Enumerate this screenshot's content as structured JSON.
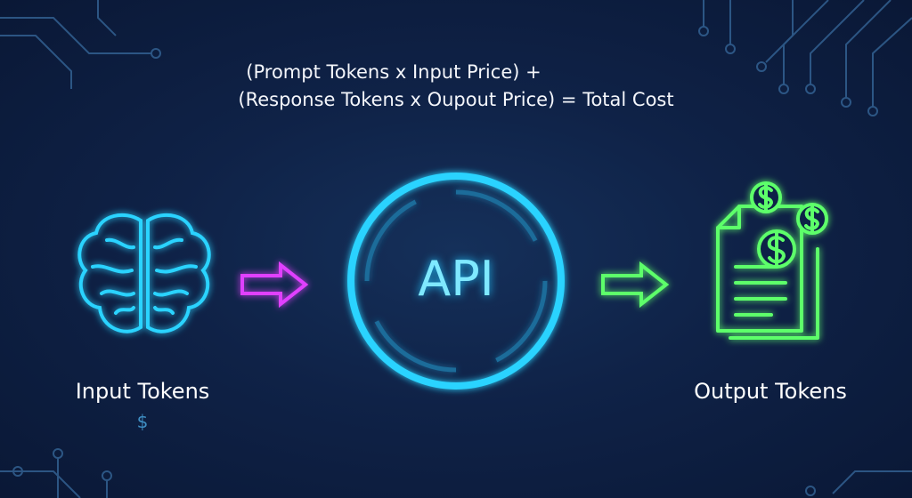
{
  "formula": {
    "line1": "(Prompt Tokens x Input Price) +",
    "line2": "(Response Tokens x Oupout Price) = Total Cost"
  },
  "input": {
    "label": "Input Tokens",
    "price_symbol": "$",
    "icon": "brain-icon"
  },
  "center": {
    "label": "API"
  },
  "output": {
    "label": "Output Tokens",
    "icon": "document-dollar-icon"
  },
  "colors": {
    "background": "#0f2247",
    "cyan": "#29d3ff",
    "magenta": "#e040ff",
    "green": "#5dff6a",
    "circuit": "#3a6fa3"
  }
}
